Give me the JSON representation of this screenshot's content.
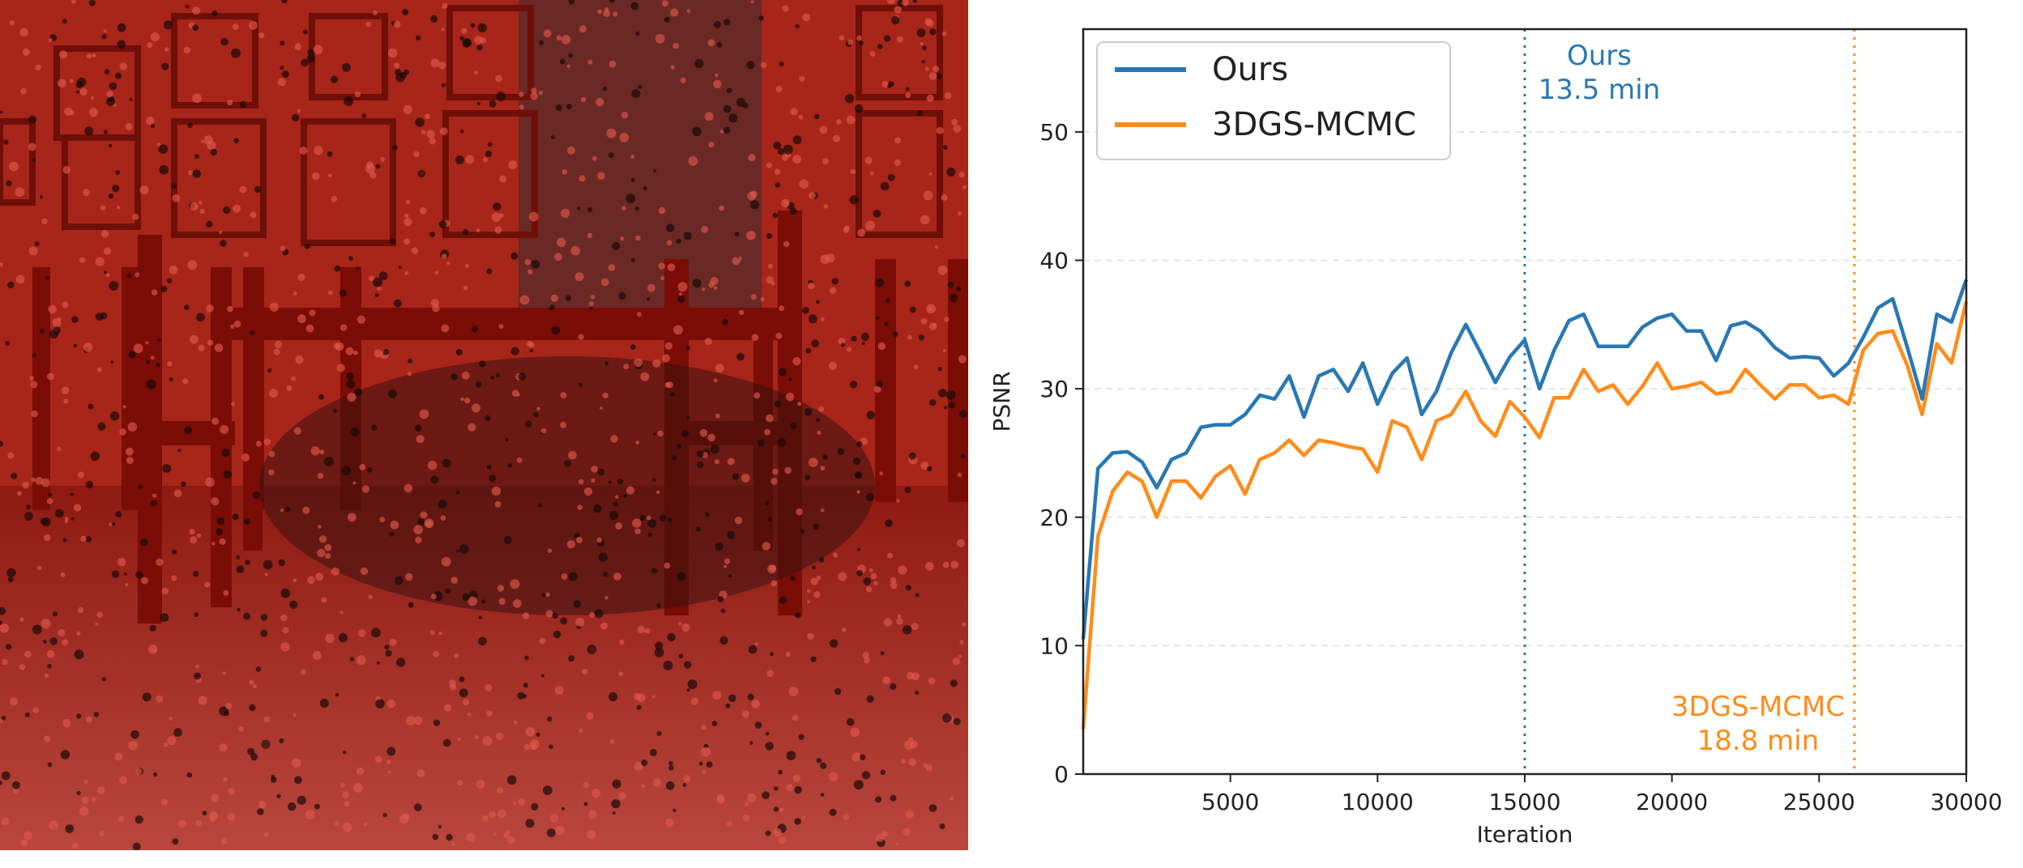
{
  "scene": {
    "description_icon": "red-point-overlay-image",
    "overlay_color": "#b01a10"
  },
  "chart_data": {
    "type": "line",
    "xlabel": "Iteration",
    "ylabel": "PSNR",
    "xlim": [
      0,
      30000
    ],
    "ylim": [
      0,
      58
    ],
    "xticks": [
      5000,
      10000,
      15000,
      20000,
      25000,
      30000
    ],
    "yticks": [
      0,
      10,
      20,
      30,
      40,
      50
    ],
    "grid": "horizontal-dashed",
    "legend_position": "top-left",
    "series": [
      {
        "name": "Ours",
        "color": "#2878b5",
        "x": [
          0,
          500,
          1000,
          1500,
          2000,
          2500,
          3000,
          3500,
          4000,
          4500,
          5000,
          5500,
          6000,
          6500,
          7000,
          7500,
          8000,
          8500,
          9000,
          9500,
          10000,
          10500,
          11000,
          11500,
          12000,
          12500,
          13000,
          13500,
          14000,
          14500,
          15000,
          15500,
          16000,
          16500,
          17000,
          17500,
          18000,
          18500,
          19000,
          19500,
          20000,
          20500,
          21000,
          21500,
          22000,
          22500,
          23000,
          23500,
          24000,
          24500,
          25000,
          25500,
          26000,
          26500,
          27000,
          27500,
          28000,
          28500,
          29000,
          29500,
          30000
        ],
        "values": [
          10.5,
          23.8,
          25.0,
          25.1,
          24.3,
          22.3,
          24.5,
          25.0,
          27.0,
          27.2,
          27.2,
          28.0,
          29.5,
          29.2,
          31.0,
          27.8,
          31.0,
          31.5,
          29.8,
          32.0,
          28.8,
          31.2,
          32.4,
          28.0,
          29.8,
          32.8,
          35.0,
          32.8,
          30.5,
          32.5,
          33.8,
          30.0,
          33.0,
          35.3,
          35.8,
          33.3,
          33.3,
          33.3,
          34.8,
          35.5,
          35.8,
          34.5,
          34.5,
          32.2,
          34.9,
          35.2,
          34.5,
          33.2,
          32.4,
          32.5,
          32.4,
          31.0,
          32.0,
          34.0,
          36.3,
          37.0,
          33.2,
          29.2,
          35.8,
          35.2,
          38.5
        ]
      },
      {
        "name": "3DGS-MCMC",
        "color": "#ff8c1a",
        "x": [
          0,
          500,
          1000,
          1500,
          2000,
          2500,
          3000,
          3500,
          4000,
          4500,
          5000,
          5500,
          6000,
          6500,
          7000,
          7500,
          8000,
          8500,
          9000,
          9500,
          10000,
          10500,
          11000,
          11500,
          12000,
          12500,
          13000,
          13500,
          14000,
          14500,
          15000,
          15500,
          16000,
          16500,
          17000,
          17500,
          18000,
          18500,
          19000,
          19500,
          20000,
          20500,
          21000,
          21500,
          22000,
          22500,
          23000,
          23500,
          24000,
          24500,
          25000,
          25500,
          26000,
          26500,
          27000,
          27500,
          28000,
          28500,
          29000,
          29500,
          30000
        ],
        "values": [
          3.5,
          18.5,
          22.0,
          23.5,
          22.8,
          20.0,
          22.8,
          22.8,
          21.5,
          23.2,
          24.0,
          21.8,
          24.5,
          25.0,
          26.0,
          24.8,
          26.0,
          25.8,
          25.5,
          25.3,
          23.5,
          27.5,
          27.0,
          24.5,
          27.5,
          28.0,
          29.8,
          27.5,
          26.3,
          29.0,
          27.8,
          26.2,
          29.3,
          29.3,
          31.5,
          29.8,
          30.3,
          28.8,
          30.2,
          32.0,
          30.0,
          30.2,
          30.5,
          29.6,
          29.8,
          31.5,
          30.3,
          29.2,
          30.3,
          30.3,
          29.3,
          29.5,
          28.8,
          33.0,
          34.3,
          34.5,
          31.8,
          28.0,
          33.5,
          32.0,
          36.8
        ]
      }
    ],
    "annotations": [
      {
        "id": "ours",
        "x": 15000,
        "color": "#2878b5",
        "line1": "Ours",
        "line2": "13.5 min"
      },
      {
        "id": "mcmc",
        "x": 26200,
        "color": "#ff8c1a",
        "line1": "3DGS-MCMC",
        "line2": "18.8 min"
      }
    ]
  }
}
